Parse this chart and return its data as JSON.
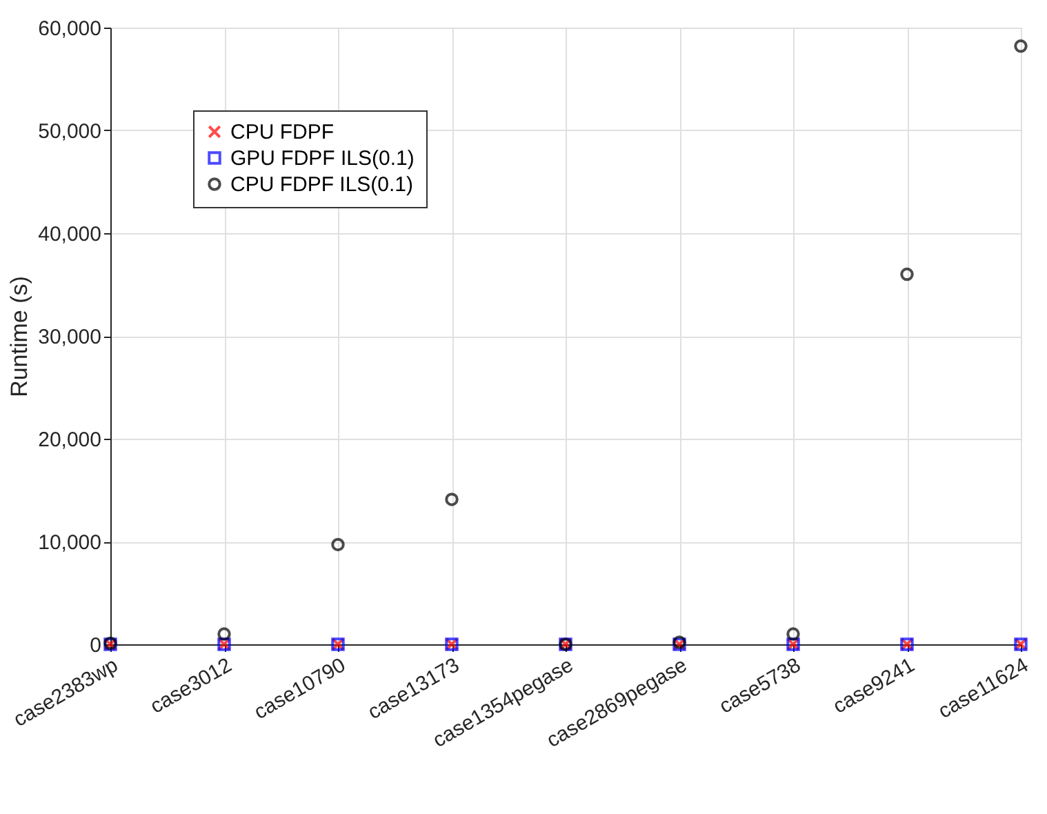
{
  "chart_data": {
    "type": "scatter",
    "ylabel": "Runtime (s)",
    "categories": [
      "case2383wp",
      "case3012",
      "case10790",
      "case13173",
      "case1354pegase",
      "case2869pegase",
      "case5738",
      "case9241",
      "case11624"
    ],
    "series": [
      {
        "name": "CPU FDPF",
        "color": "#ff0000",
        "marker": "cross",
        "values": [
          0,
          0,
          0,
          0,
          0,
          0,
          0,
          0,
          0
        ]
      },
      {
        "name": "GPU FDPF ILS(0.1)",
        "color": "#0000ff",
        "marker": "square",
        "values": [
          0,
          0,
          0,
          0,
          0,
          0,
          0,
          0,
          0
        ]
      },
      {
        "name": "CPU FDPF ILS(0.1)",
        "color": "#000000",
        "marker": "circle",
        "values": [
          100,
          1000,
          9700,
          14100,
          0,
          200,
          1000,
          36000,
          58200
        ]
      }
    ],
    "ylim": [
      0,
      60000
    ],
    "yticks": [
      0,
      {
        "value": 10000,
        "label": "10,000"
      },
      {
        "value": 20000,
        "label": "20,000"
      },
      {
        "value": 30000,
        "label": "30,000"
      },
      {
        "value": 40000,
        "label": "40,000"
      },
      {
        "value": 50000,
        "label": "50,000"
      },
      {
        "value": 60000,
        "label": "60,000"
      }
    ],
    "grid": true,
    "legend": "top left"
  }
}
